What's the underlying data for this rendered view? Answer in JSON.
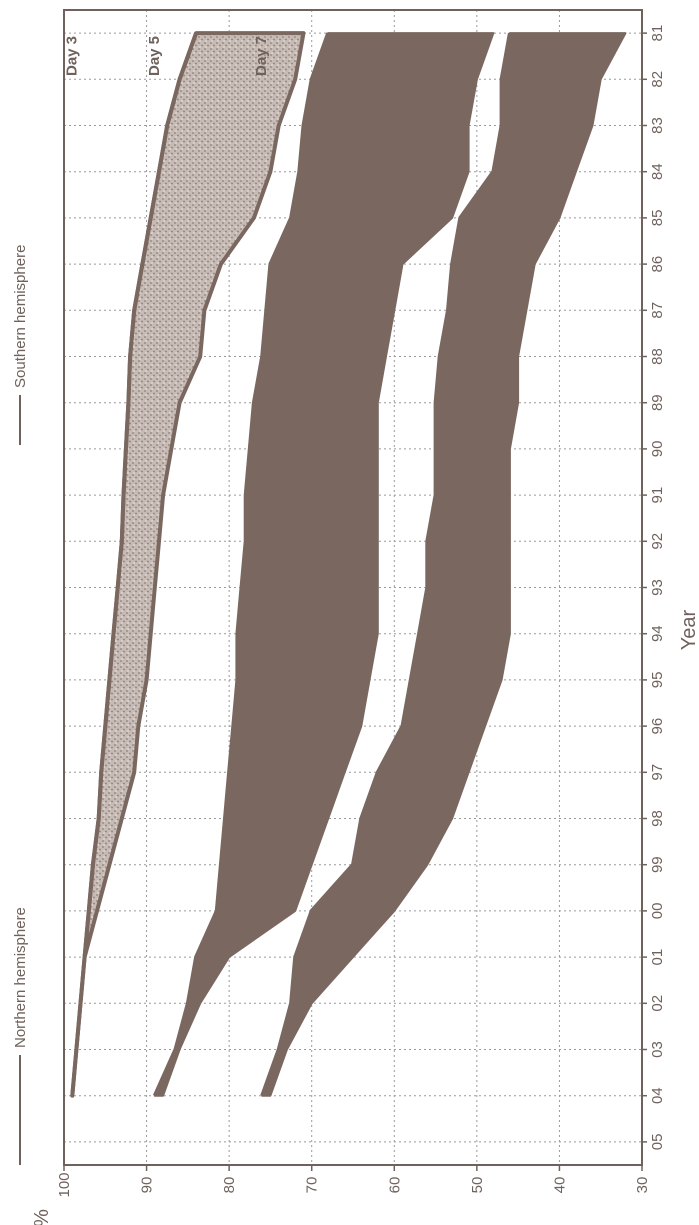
{
  "chart_data": {
    "type": "area",
    "orientation": "rotated-90-clockwise",
    "xlabel": "Year",
    "ylabel": "%",
    "x_ticks": [
      "81",
      "82",
      "83",
      "84",
      "85",
      "86",
      "87",
      "88",
      "89",
      "90",
      "91",
      "92",
      "93",
      "94",
      "95",
      "96",
      "97",
      "98",
      "99",
      "00",
      "01",
      "02",
      "03",
      "04",
      "05"
    ],
    "xlim": [
      1981,
      2005
    ],
    "y_ticks": [
      30,
      40,
      50,
      60,
      70,
      80,
      90,
      100
    ],
    "ylim": [
      30,
      100
    ],
    "grid": true,
    "legend": {
      "placement": "top",
      "entries": [
        {
          "name": "Northern hemisphere"
        },
        {
          "name": "Southern hemisphere"
        }
      ]
    },
    "colors": {
      "band": "#7a6860",
      "day3_fill": "#bdb0a9",
      "text": "#6f615b",
      "grid": "#9a9a9a"
    },
    "series": [
      {
        "name": "Day 3",
        "x": [
          1981,
          1982,
          1983,
          1984,
          1985,
          1986,
          1987,
          1988,
          1989,
          1990,
          1991,
          1992,
          1993,
          1994,
          1995,
          1996,
          1997,
          1998,
          1999,
          2000,
          2001,
          2002,
          2003,
          2004
        ],
        "northern": [
          84,
          86,
          87.5,
          88.5,
          89.5,
          90.5,
          91.5,
          92,
          92.2,
          92.5,
          92.8,
          93,
          93.5,
          94,
          94.5,
          95,
          95.5,
          95.8,
          96.5,
          97,
          97.5,
          98,
          98.5,
          99
        ],
        "southern": [
          71,
          72,
          74,
          75,
          77,
          81,
          83,
          83.5,
          86,
          87,
          88,
          88.5,
          89,
          89.5,
          90,
          91,
          91.5,
          93,
          94.5,
          96,
          97.5,
          98,
          98.5,
          99
        ]
      },
      {
        "name": "Day 5",
        "x": [
          1981,
          1982,
          1983,
          1984,
          1985,
          1986,
          1987,
          1988,
          1989,
          1990,
          1991,
          1992,
          1993,
          1994,
          1995,
          1996,
          1997,
          1998,
          1999,
          2000,
          2001,
          2002,
          2003,
          2004
        ],
        "northern": [
          68,
          70,
          71,
          71.5,
          72.5,
          75,
          75.5,
          76,
          77,
          77.5,
          78,
          78,
          78.5,
          79,
          79,
          79.5,
          80,
          80.5,
          81,
          81.5,
          84,
          85,
          86.5,
          89
        ],
        "southern": [
          48,
          50,
          51,
          51,
          53,
          59,
          60,
          61,
          62,
          62,
          62,
          62,
          62,
          62,
          63,
          64,
          66,
          68,
          70,
          72,
          80,
          83.5,
          86,
          88
        ]
      },
      {
        "name": "Day 7",
        "x": [
          1981,
          1982,
          1983,
          1984,
          1985,
          1986,
          1987,
          1988,
          1989,
          1990,
          1991,
          1992,
          1993,
          1994,
          1995,
          1996,
          1997,
          1998,
          1999,
          2000,
          2001,
          2002,
          2003,
          2004
        ],
        "northern": [
          46,
          47,
          47,
          48,
          52,
          53,
          53.5,
          54.5,
          55,
          55,
          55,
          56,
          56,
          57,
          58,
          59,
          62,
          64,
          65,
          70,
          72,
          72.5,
          74,
          76
        ],
        "southern": [
          32,
          35,
          36,
          38,
          40,
          43,
          44,
          45,
          45,
          46,
          46,
          46,
          46,
          46,
          47,
          49,
          51,
          53,
          56,
          60,
          65,
          70,
          73,
          75
        ]
      }
    ]
  }
}
